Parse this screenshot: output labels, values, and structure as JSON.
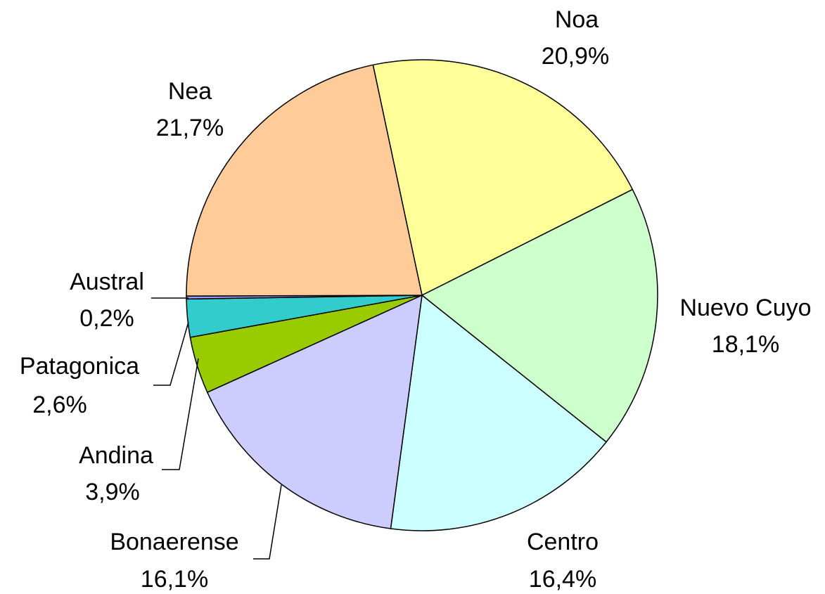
{
  "chart_data": {
    "type": "pie",
    "categories": [
      "Noa",
      "Nuevo Cuyo",
      "Centro",
      "Bonaerense",
      "Andina",
      "Patagonica",
      "Austral",
      "Nea"
    ],
    "values": [
      20.9,
      18.1,
      16.4,
      16.1,
      3.9,
      2.6,
      0.2,
      21.7
    ],
    "value_labels": [
      "20,9%",
      "18,1%",
      "16,4%",
      "16,1%",
      "3,9%",
      "2,6%",
      "0,2%",
      "21,7%"
    ],
    "colors": [
      "#ffff99",
      "#ccffcc",
      "#ccffff",
      "#ccccff",
      "#99cc00",
      "#33cccc",
      "#9999ff",
      "#ffcc99"
    ]
  }
}
